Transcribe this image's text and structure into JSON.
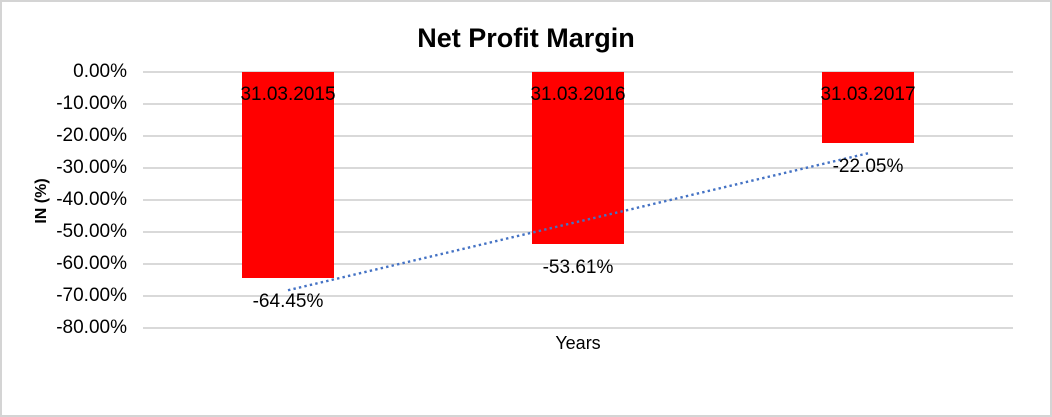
{
  "chart_canvas": {
    "bg_color": "#FFFFFF",
    "border_color": "#D4D4D4"
  },
  "chart_data": {
    "type": "bar",
    "title": "Net Profit Margin",
    "xlabel": "Years",
    "ylabel": "IN (%)",
    "categories": [
      "31.03.2015",
      "31.03.2016",
      "31.03.2017"
    ],
    "values": [
      -64.45,
      -53.61,
      -22.05
    ],
    "value_labels": [
      "-64.45%",
      "-53.61%",
      "-22.05%"
    ],
    "ylim": [
      0,
      -80
    ],
    "ytick_labels": [
      "0.00%",
      "-10.00%",
      "-20.00%",
      "-30.00%",
      "-40.00%",
      "-50.00%",
      "-60.00%",
      "-70.00%",
      "-80.00%"
    ],
    "grid": true,
    "legend": "none",
    "bar_color": "#FF0000",
    "label_color": "#000000",
    "gridline_color": "#D9D9D9",
    "trendline": {
      "type": "linear",
      "style": "dotted",
      "color": "#4472C4",
      "start_value": -68.2,
      "end_value": -25.4
    }
  }
}
